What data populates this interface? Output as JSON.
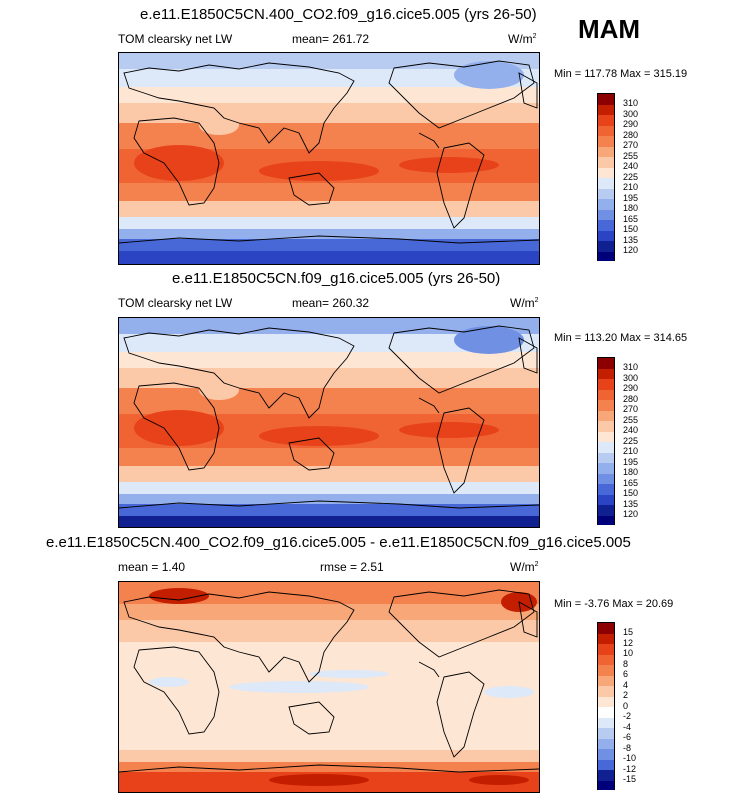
{
  "season": "MAM",
  "panels": [
    {
      "title": "e.e11.E1850C5CN.400_CO2.f09_g16.cice5.005 (yrs 26-50)",
      "left_label": "TOM clearsky net LW",
      "center_label": "mean= 261.72",
      "units": "W/m",
      "units_sup": "2",
      "minmax": "Min = 117.78 Max = 315.19",
      "levels": [
        "310",
        "300",
        "290",
        "280",
        "270",
        "255",
        "240",
        "225",
        "210",
        "195",
        "180",
        "165",
        "150",
        "135",
        "120"
      ],
      "colors": [
        "#8b0000",
        "#c41e00",
        "#e8421a",
        "#f06434",
        "#f4824e",
        "#f8a878",
        "#fbc8a8",
        "#fde6d4",
        "#dde8f8",
        "#b8ccf2",
        "#94b0ec",
        "#7090e4",
        "#4868d8",
        "#2a44c4",
        "#102090",
        "#00007a"
      ]
    },
    {
      "title": "e.e11.E1850C5CN.f09_g16.cice5.005 (yrs 26-50)",
      "left_label": "TOM clearsky net LW",
      "center_label": "mean= 260.32",
      "units": "W/m",
      "units_sup": "2",
      "minmax": "Min = 113.20 Max = 314.65",
      "levels": [
        "310",
        "300",
        "290",
        "280",
        "270",
        "255",
        "240",
        "225",
        "210",
        "195",
        "180",
        "165",
        "150",
        "135",
        "120"
      ],
      "colors": [
        "#8b0000",
        "#c41e00",
        "#e8421a",
        "#f06434",
        "#f4824e",
        "#f8a878",
        "#fbc8a8",
        "#fde6d4",
        "#dde8f8",
        "#b8ccf2",
        "#94b0ec",
        "#7090e4",
        "#4868d8",
        "#2a44c4",
        "#102090",
        "#00007a"
      ]
    },
    {
      "title": "e.e11.E1850C5CN.400_CO2.f09_g16.cice5.005 - e.e11.E1850C5CN.f09_g16.cice5.005",
      "left_label": "mean =   1.40",
      "center_label": "rmse =   2.51",
      "units": "W/m",
      "units_sup": "2",
      "minmax": "Min =  -3.76 Max =  20.69",
      "levels": [
        "15",
        "12",
        "10",
        "8",
        "6",
        "4",
        "2",
        "0",
        "-2",
        "-4",
        "-6",
        "-8",
        "-10",
        "-12",
        "-15"
      ],
      "colors": [
        "#8b0000",
        "#c41e00",
        "#e8421a",
        "#f06434",
        "#f4824e",
        "#f8a878",
        "#fbc8a8",
        "#fde6d4",
        "#ffffff",
        "#dde8f8",
        "#b8ccf2",
        "#94b0ec",
        "#7090e4",
        "#4868d8",
        "#102090",
        "#00007a"
      ]
    }
  ]
}
